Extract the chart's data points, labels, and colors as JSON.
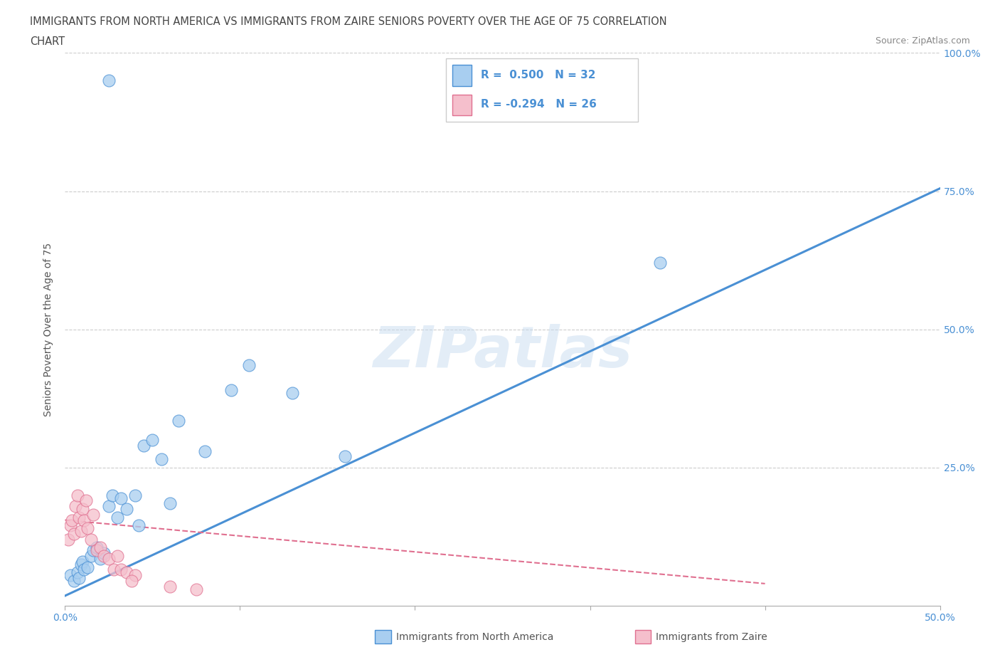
{
  "title_line1": "IMMIGRANTS FROM NORTH AMERICA VS IMMIGRANTS FROM ZAIRE SENIORS POVERTY OVER THE AGE OF 75 CORRELATION",
  "title_line2": "CHART",
  "source_text": "Source: ZipAtlas.com",
  "ylabel": "Seniors Poverty Over the Age of 75",
  "watermark": "ZIPatlas",
  "xlim": [
    0.0,
    0.5
  ],
  "ylim": [
    0.0,
    1.0
  ],
  "R_blue": 0.5,
  "N_blue": 32,
  "R_pink": -0.294,
  "N_pink": 26,
  "color_blue": "#A8CEF0",
  "color_blue_line": "#4A90D4",
  "color_pink": "#F5BFCC",
  "color_pink_line": "#E07090",
  "legend_text_color": "#4A90D4",
  "blue_scatter_x": [
    0.003,
    0.005,
    0.007,
    0.008,
    0.009,
    0.01,
    0.011,
    0.013,
    0.015,
    0.016,
    0.018,
    0.02,
    0.022,
    0.025,
    0.027,
    0.03,
    0.032,
    0.035,
    0.04,
    0.042,
    0.045,
    0.05,
    0.055,
    0.06,
    0.065,
    0.08,
    0.095,
    0.105,
    0.13,
    0.16,
    0.34,
    0.025
  ],
  "blue_scatter_y": [
    0.055,
    0.045,
    0.06,
    0.05,
    0.075,
    0.08,
    0.065,
    0.07,
    0.09,
    0.1,
    0.105,
    0.085,
    0.095,
    0.18,
    0.2,
    0.16,
    0.195,
    0.175,
    0.2,
    0.145,
    0.29,
    0.3,
    0.265,
    0.185,
    0.335,
    0.28,
    0.39,
    0.435,
    0.385,
    0.27,
    0.62,
    0.95
  ],
  "pink_scatter_x": [
    0.002,
    0.003,
    0.004,
    0.005,
    0.006,
    0.007,
    0.008,
    0.009,
    0.01,
    0.011,
    0.012,
    0.013,
    0.015,
    0.016,
    0.018,
    0.02,
    0.022,
    0.025,
    0.028,
    0.03,
    0.032,
    0.035,
    0.04,
    0.06,
    0.075,
    0.038
  ],
  "pink_scatter_y": [
    0.12,
    0.145,
    0.155,
    0.13,
    0.18,
    0.2,
    0.16,
    0.135,
    0.175,
    0.155,
    0.19,
    0.14,
    0.12,
    0.165,
    0.1,
    0.105,
    0.09,
    0.085,
    0.065,
    0.09,
    0.065,
    0.06,
    0.055,
    0.035,
    0.03,
    0.045
  ],
  "blue_trend_x0": 0.0,
  "blue_trend_y0": 0.018,
  "blue_trend_x1": 0.5,
  "blue_trend_y1": 0.755,
  "pink_trend_x0": 0.0,
  "pink_trend_y0": 0.155,
  "pink_trend_x1": 0.4,
  "pink_trend_y1": 0.04
}
